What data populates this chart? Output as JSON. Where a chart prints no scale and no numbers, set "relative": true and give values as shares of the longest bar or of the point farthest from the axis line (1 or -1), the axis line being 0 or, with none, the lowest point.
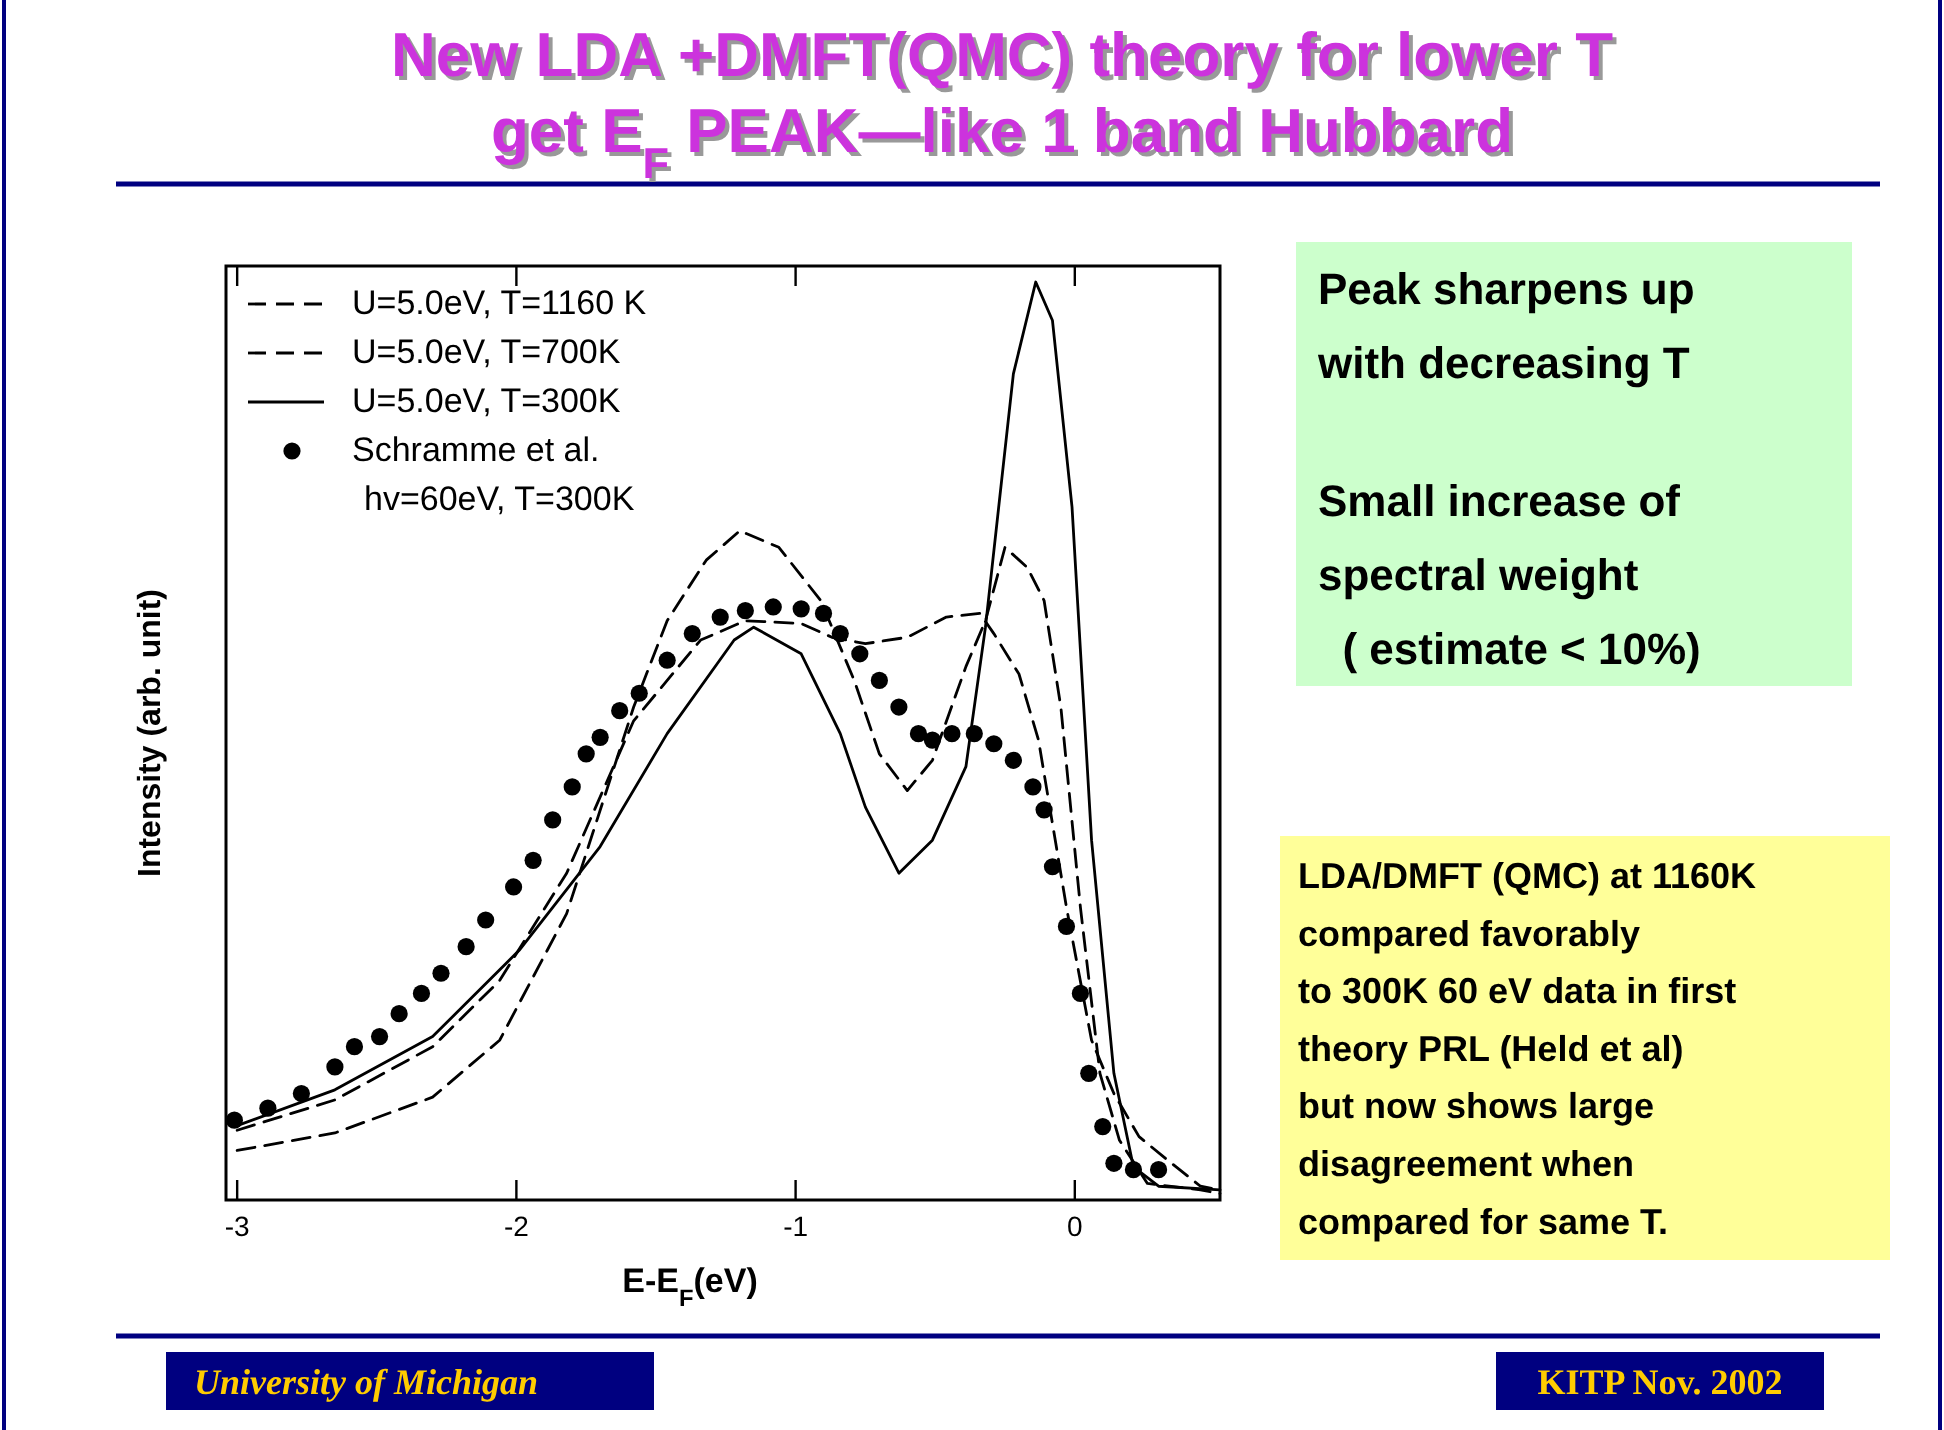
{
  "chart_data": {
    "type": "line",
    "title": "New LDA +DMFT(QMC) theory for lower T\nget E$_{F}$ PEAK—like 1 band Hubbard",
    "xlabel": "E-E$_{F}$(eV)",
    "ylabel": "Intensity (arb. unit)",
    "relative": true,
    "xlim": [
      -3.04,
      0.52
    ],
    "xticks": [
      -3,
      -2,
      -1,
      0
    ],
    "legend": "top left",
    "series": [
      {
        "name": "U=5.0eV, T=1160 K",
        "color": "#000000",
        "line_style": "dashed",
        "x": [
          -3.0,
          -2.65,
          -2.3,
          -2.06,
          -1.82,
          -1.58,
          -1.34,
          -1.18,
          -0.98,
          -0.87,
          -0.75,
          -0.6,
          -0.46,
          -0.34,
          -0.29,
          -0.2,
          -0.13,
          -0.03,
          0.06,
          0.14,
          0.23,
          0.33,
          0.45,
          0.52
        ],
        "values": [
          0.076,
          0.109,
          0.167,
          0.239,
          0.356,
          0.522,
          0.61,
          0.631,
          0.628,
          0.613,
          0.606,
          0.613,
          0.635,
          0.639,
          0.617,
          0.573,
          0.501,
          0.319,
          0.174,
          0.116,
          0.069,
          0.044,
          0.015,
          0.011
        ]
      },
      {
        "name": "U=5.0eV, T=700K",
        "color": "#000000",
        "line_style": "dashed",
        "x": [
          -3.0,
          -2.65,
          -2.3,
          -2.06,
          -1.82,
          -1.58,
          -1.46,
          -1.32,
          -1.2,
          -1.06,
          -0.91,
          -0.79,
          -0.7,
          -0.6,
          -0.51,
          -0.39,
          -0.32,
          -0.25,
          -0.17,
          -0.11,
          -0.05,
          0.02,
          0.09,
          0.16,
          0.26,
          0.45,
          0.52
        ],
        "values": [
          0.054,
          0.073,
          0.112,
          0.174,
          0.312,
          0.537,
          0.631,
          0.697,
          0.729,
          0.711,
          0.653,
          0.566,
          0.486,
          0.446,
          0.479,
          0.581,
          0.631,
          0.711,
          0.689,
          0.653,
          0.537,
          0.319,
          0.138,
          0.065,
          0.018,
          0.011,
          0.007
        ]
      },
      {
        "name": "U=5.0eV, T=300K",
        "color": "#000000",
        "line_style": "solid",
        "x": [
          -3.01,
          -2.65,
          -2.3,
          -1.99,
          -1.7,
          -1.46,
          -1.22,
          -1.15,
          -0.98,
          -0.84,
          -0.75,
          -0.63,
          -0.51,
          -0.39,
          -0.32,
          -0.22,
          -0.14,
          -0.08,
          -0.01,
          0.06,
          0.14,
          0.21,
          0.3,
          0.52
        ],
        "values": [
          0.08,
          0.12,
          0.178,
          0.272,
          0.385,
          0.508,
          0.61,
          0.624,
          0.595,
          0.508,
          0.428,
          0.356,
          0.392,
          0.472,
          0.624,
          0.9,
          1.0,
          0.958,
          0.755,
          0.392,
          0.138,
          0.036,
          0.015,
          0.011
        ]
      },
      {
        "name": "Schramme et al.\nhv=60eV, T=300K",
        "color": "#000000",
        "type": "scatter",
        "marker": "circle",
        "x": [
          -3.01,
          -2.89,
          -2.77,
          -2.65,
          -2.58,
          -2.49,
          -2.42,
          -2.34,
          -2.27,
          -2.18,
          -2.11,
          -2.01,
          -1.94,
          -1.87,
          -1.8,
          -1.75,
          -1.7,
          -1.63,
          -1.56,
          -1.46,
          -1.37,
          -1.27,
          -1.18,
          -1.08,
          -0.98,
          -0.9,
          -0.84,
          -0.77,
          -0.7,
          -0.63,
          -0.56,
          -0.51,
          -0.44,
          -0.36,
          -0.29,
          -0.22,
          -0.15,
          -0.11,
          -0.08,
          -0.03,
          0.02,
          0.05,
          0.1,
          0.14,
          0.21,
          0.3
        ],
        "values": [
          0.087,
          0.1,
          0.116,
          0.145,
          0.167,
          0.178,
          0.203,
          0.225,
          0.247,
          0.276,
          0.305,
          0.341,
          0.37,
          0.414,
          0.45,
          0.486,
          0.504,
          0.533,
          0.552,
          0.588,
          0.617,
          0.635,
          0.642,
          0.646,
          0.644,
          0.639,
          0.617,
          0.595,
          0.566,
          0.537,
          0.508,
          0.501,
          0.508,
          0.508,
          0.497,
          0.479,
          0.45,
          0.425,
          0.363,
          0.298,
          0.225,
          0.138,
          0.08,
          0.04,
          0.033,
          0.033
        ]
      }
    ],
    "annotations": [
      "Peak sharpens up\nwith decreasing T",
      "Small increase of\nspectral weight\n  ( estimate < 10%)",
      "LDA/DMFT (QMC) at 1160K\ncompared favorably\nto 300K 60 eV data in first\ntheory PRL (Held et al)\nbut now shows large\ndisagreement when\ncompared for same T.",
      "University of Michigan",
      "KITP Nov. 2002"
    ]
  }
}
